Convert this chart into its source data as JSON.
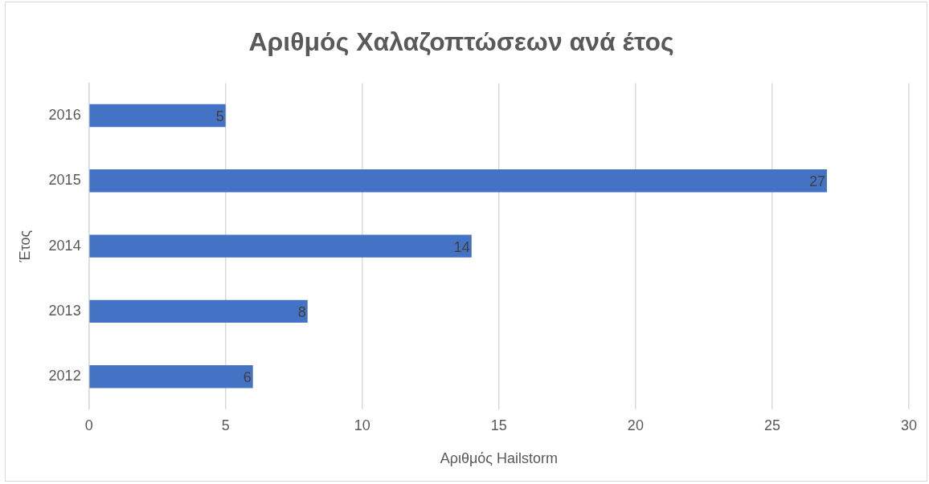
{
  "chart_data": {
    "type": "bar",
    "orientation": "horizontal",
    "title": "Αριθμός Χαλαζοπτώσεων ανά έτος",
    "xlabel": "Αριθμός Hailstorm",
    "ylabel": "Έτος",
    "categories": [
      "2016",
      "2015",
      "2014",
      "2013",
      "2012"
    ],
    "values": [
      5,
      27,
      14,
      8,
      6
    ],
    "color": "#4472c4",
    "xlim": [
      0,
      30
    ],
    "xticks": [
      0,
      5,
      10,
      15,
      20,
      25,
      30
    ],
    "grid": "x",
    "legend": false,
    "data_labels": true
  }
}
